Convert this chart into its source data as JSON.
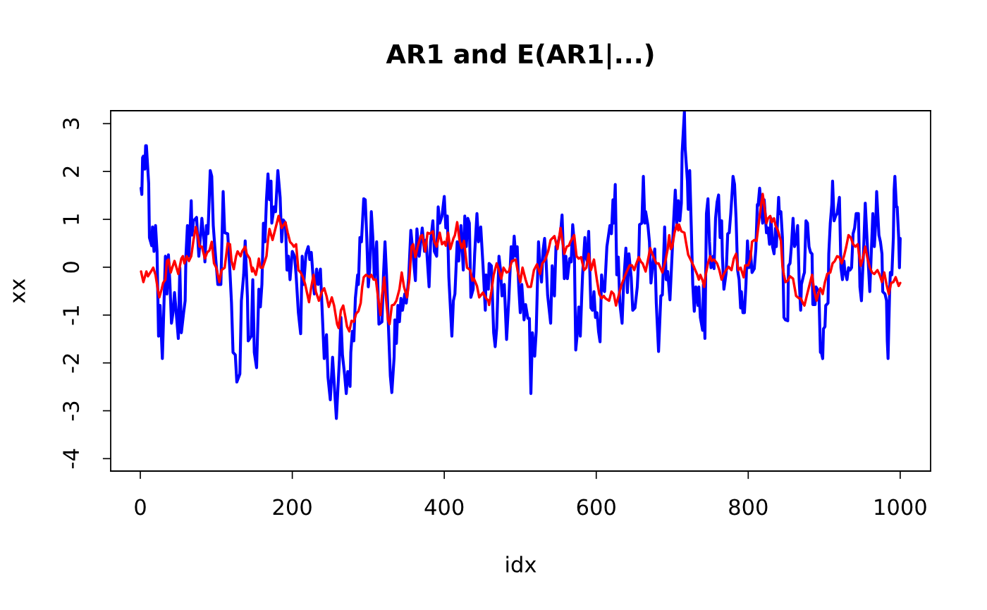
{
  "chart_data": {
    "type": "line",
    "title": "AR1 and E(AR1|...)",
    "xlabel": "idx",
    "ylabel": "xx",
    "xlim": [
      -39,
      1040
    ],
    "ylim": [
      -4.26,
      3.27
    ],
    "xticks": [
      0,
      200,
      400,
      600,
      800,
      1000
    ],
    "yticks": [
      -4,
      -3,
      -2,
      -1,
      0,
      1,
      2,
      3
    ],
    "series": [
      {
        "color": "#0000ff",
        "x": [
          1,
          2,
          3,
          4,
          6,
          7,
          8,
          11,
          12,
          15,
          16,
          18,
          20,
          22,
          24,
          26,
          29,
          33,
          35,
          37,
          39,
          41,
          43,
          45,
          47,
          50,
          52,
          54,
          57,
          59,
          60,
          62,
          64,
          67,
          68,
          70,
          74,
          77,
          81,
          84,
          85,
          87,
          89,
          92,
          94,
          96,
          98,
          100,
          102,
          106,
          109,
          111,
          115,
          118,
          120,
          122,
          125,
          127,
          131,
          133,
          136,
          138,
          141,
          142,
          146,
          148,
          150,
          153,
          156,
          158,
          160,
          162,
          164,
          166,
          168,
          170,
          172,
          173,
          176,
          178,
          181,
          184,
          186,
          188,
          191,
          193,
          195,
          197,
          200,
          203,
          205,
          208,
          211,
          213,
          215,
          218,
          221,
          223,
          225,
          229,
          232,
          234,
          237,
          239,
          242,
          245,
          247,
          250,
          253,
          258,
          262,
          264,
          266,
          269,
          271,
          273,
          276,
          277,
          279,
          281,
          283,
          286,
          287,
          289,
          291,
          294,
          296,
          298,
          300,
          302,
          304,
          306,
          308,
          311,
          314,
          318,
          320,
          322,
          324,
          327,
          329,
          331,
          334,
          335,
          337,
          339,
          341,
          343,
          345,
          348,
          350,
          353,
          356,
          358,
          362,
          364,
          367,
          371,
          374,
          376,
          380,
          382,
          385,
          387,
          390,
          392,
          394,
          397,
          400,
          402,
          404,
          406,
          410,
          412,
          414,
          417,
          419,
          421,
          422,
          425,
          427,
          429,
          431,
          433,
          435,
          438,
          440,
          443,
          445,
          448,
          451,
          454,
          455,
          458,
          459,
          462,
          465,
          467,
          469,
          472,
          474,
          476,
          479,
          482,
          485,
          488,
          490,
          492,
          494,
          496,
          498,
          500,
          502,
          505,
          507,
          510,
          512,
          514,
          516,
          519,
          521,
          524,
          526,
          528,
          530,
          532,
          534,
          536,
          540,
          542,
          545,
          547,
          550,
          553,
          555,
          558,
          560,
          562,
          565,
          567,
          569,
          571,
          573,
          575,
          577,
          579,
          581,
          582,
          585,
          586,
          588,
          590,
          593,
          595,
          597,
          599,
          601,
          603,
          605,
          607,
          609,
          611,
          614,
          616,
          618,
          620,
          622,
          623,
          625,
          627,
          629,
          631,
          634,
          636,
          639,
          641,
          643,
          646,
          648,
          651,
          654,
          656,
          657,
          660,
          662,
          664,
          665,
          668,
          670,
          672,
          674,
          677,
          679,
          682,
          685,
          687,
          690,
          692,
          694,
          697,
          700,
          702,
          704,
          706,
          708,
          710,
          712,
          713,
          716,
          717,
          720,
          721,
          723,
          725,
          727,
          729,
          731,
          734,
          735,
          737,
          740,
          741,
          743,
          745,
          747,
          749,
          751,
          754,
          755,
          757,
          759,
          761,
          763,
          765,
          766,
          768,
          771,
          773,
          775,
          777,
          779,
          780,
          782,
          784,
          786,
          788,
          790,
          791,
          793,
          795,
          797,
          799,
          801,
          803,
          805,
          808,
          810,
          812,
          813,
          815,
          819,
          821,
          824,
          826,
          828,
          830,
          832,
          834,
          836,
          837,
          840,
          841,
          843,
          845,
          847,
          849,
          852,
          853,
          855,
          857,
          859,
          861,
          863,
          865,
          867,
          869,
          870,
          873,
          874,
          876,
          878,
          880,
          882,
          884,
          885,
          888,
          889,
          891,
          893,
          895,
          896,
          898,
          899,
          901,
          902,
          905,
          906,
          908,
          910,
          911,
          913,
          915,
          917,
          920,
          922,
          924,
          926,
          927,
          930,
          932,
          934,
          936,
          938,
          940,
          942,
          945,
          947,
          949,
          952,
          954,
          957,
          958,
          960,
          962,
          964,
          966,
          968,
          969,
          972,
          974,
          976,
          977,
          980,
          982,
          983,
          984,
          986,
          987,
          989,
          991,
          992,
          993,
          995,
          996,
          998,
          999,
          1000
        ],
        "values": [
          1.65,
          1.52,
          2.29,
          2.32,
          2.05,
          2.54,
          2.54,
          1.75,
          0.62,
          0.45,
          0.84,
          0.33,
          0.87,
          0.33,
          -1.44,
          -0.8,
          -1.91,
          0.23,
          -0.56,
          0.26,
          -0.36,
          -1.17,
          -0.95,
          -0.53,
          -0.9,
          -1.49,
          -0.01,
          -1.37,
          -0.95,
          -0.7,
          0.23,
          0.87,
          0.23,
          1.39,
          0.67,
          0.97,
          1.04,
          0.23,
          1.02,
          0.53,
          0.11,
          0.87,
          0.7,
          2.02,
          1.9,
          0.87,
          0.43,
          0.03,
          -0.36,
          -0.36,
          1.58,
          0.72,
          0.7,
          -0.11,
          -0.75,
          -1.78,
          -1.83,
          -2.4,
          -2.23,
          -0.7,
          -0.16,
          0.55,
          -0.65,
          -1.54,
          -1.44,
          -0.26,
          -1.78,
          -2.1,
          -0.46,
          -0.83,
          -0.36,
          0.92,
          0.53,
          1.41,
          1.95,
          1.41,
          1.8,
          0.92,
          1.26,
          1.16,
          2.02,
          1.46,
          0.53,
          0.99,
          0.92,
          -0.06,
          0.23,
          -0.26,
          0.33,
          0.23,
          -0.16,
          -0.95,
          -1.39,
          0.23,
          -0.36,
          0.28,
          0.43,
          0.16,
          0.31,
          -0.56,
          -0.04,
          -0.36,
          -0.04,
          -0.8,
          -1.91,
          -1.41,
          -2.3,
          -2.77,
          -1.88,
          -3.16,
          -1.93,
          -1.05,
          -1.83,
          -2.27,
          -2.64,
          -2.18,
          -2.49,
          -1.78,
          -1.34,
          -1.54,
          -0.65,
          -0.16,
          -0.36,
          0.62,
          0.53,
          1.43,
          1.41,
          0.62,
          -0.41,
          -0.01,
          1.16,
          0.62,
          -0.24,
          0.53,
          -1.19,
          -1.14,
          -0.16,
          0.53,
          -0.16,
          -1.44,
          -2.27,
          -2.62,
          -1.88,
          -1.1,
          -1.59,
          -0.8,
          -1.14,
          -0.65,
          -0.9,
          -0.56,
          -0.75,
          -0.26,
          0.77,
          0.43,
          -0.28,
          0.8,
          0.23,
          0.82,
          0.33,
          0.57,
          -0.41,
          0.53,
          0.97,
          0.33,
          0.23,
          1.26,
          0.92,
          1.07,
          1.48,
          0.82,
          1.07,
          -0.21,
          -1.44,
          -0.7,
          -0.56,
          0.53,
          0.13,
          0.62,
          0.87,
          -0.06,
          1.07,
          0.43,
          1.02,
          0.92,
          -0.63,
          -0.46,
          0.28,
          1.12,
          0.53,
          0.84,
          0.03,
          -0.9,
          -0.16,
          -0.46,
          0.08,
          0.03,
          -1.37,
          -1.66,
          -1.27,
          0.23,
          -0.06,
          -0.6,
          -0.36,
          -1.51,
          -0.65,
          0.43,
          0.13,
          0.65,
          0.23,
          0.43,
          -0.41,
          -0.95,
          -0.36,
          -1.1,
          -0.78,
          -1.07,
          -1.07,
          -2.64,
          -1.37,
          -1.86,
          -1.34,
          0.53,
          0.03,
          -0.31,
          0.35,
          0.6,
          0.13,
          -0.58,
          -1.17,
          0.03,
          -0.6,
          0.43,
          0.53,
          0.72,
          1.09,
          -0.24,
          0.23,
          -0.24,
          0.18,
          0.11,
          0.89,
          0.53,
          -1.73,
          -1.39,
          -0.83,
          -1.44,
          -0.56,
          -0.16,
          0.62,
          0.23,
          0.13,
          0.75,
          -0.85,
          -0.9,
          -0.51,
          -1.05,
          -0.95,
          -1.34,
          -1.56,
          -0.16,
          -0.46,
          -0.51,
          0.43,
          0.65,
          0.87,
          0.7,
          1.41,
          0.92,
          1.73,
          -0.16,
          0.21,
          -0.75,
          -1.17,
          -0.36,
          0.4,
          -0.53,
          0.28,
          -0.21,
          -0.9,
          -0.85,
          -0.41,
          0.23,
          0.89,
          0.92,
          1.9,
          0.92,
          1.16,
          0.87,
          0.53,
          -0.33,
          -0.01,
          0.38,
          -0.75,
          -1.76,
          -0.6,
          -0.58,
          0.84,
          -0.26,
          -0.09,
          -0.68,
          0.33,
          1.02,
          1.61,
          0.92,
          1.39,
          0.97,
          1.34,
          2.39,
          3.25,
          2.49,
          1.8,
          1.21,
          2.02,
          0.87,
          -0.36,
          -0.92,
          -0.41,
          -0.8,
          -0.41,
          -1.05,
          -1.32,
          -0.36,
          -1.49,
          1.12,
          1.43,
          0.53,
          -0.01,
          0.23,
          -0.03,
          1.02,
          1.36,
          1.51,
          0.62,
          0.97,
          0.23,
          -0.46,
          -0.11,
          0.7,
          0.72,
          1.12,
          1.61,
          1.9,
          1.73,
          1.02,
          -0.06,
          -0.26,
          -0.85,
          -0.51,
          -0.95,
          -0.95,
          -0.36,
          0.55,
          -0.01,
          0.33,
          -0.11,
          -0.03,
          0.38,
          1.31,
          1.29,
          1.65,
          0.92,
          1.41,
          0.72,
          0.82,
          0.48,
          1.02,
          0.43,
          0.28,
          0.82,
          0.43,
          1.46,
          1.12,
          1.16,
          0.62,
          -1.05,
          -1.1,
          -1.12,
          0.03,
          0.08,
          0.48,
          1.02,
          0.43,
          0.53,
          0.87,
          -0.26,
          -0.9,
          -0.36,
          -0.16,
          -0.11,
          0.97,
          0.92,
          0.43,
          0.31,
          0.28,
          -0.78,
          -0.78,
          -0.41,
          -0.46,
          -0.51,
          -1.78,
          -1.76,
          -1.91,
          -1.29,
          -1.24,
          -0.8,
          -0.75,
          0.28,
          0.92,
          1.31,
          1.8,
          0.97,
          1.07,
          1.12,
          1.46,
          -0.01,
          -0.26,
          0.13,
          -0.06,
          -0.26,
          -0.01,
          -0.06,
          -0.01,
          0.7,
          0.82,
          1.12,
          1.12,
          -0.41,
          -0.7,
          0.43,
          1.34,
          0.38,
          0.08,
          -0.51,
          0.33,
          1.12,
          0.43,
          1.02,
          1.58,
          0.67,
          0.53,
          0.28,
          -0.51,
          -0.56,
          -0.7,
          -1.54,
          -1.91,
          -0.56,
          -0.11,
          -0.16,
          0.62,
          1.61,
          1.9,
          1.26,
          1.26,
          0.62,
          -0.01,
          0.6
        ]
      },
      {
        "color": "#ff0000",
        "x": [
          1,
          4,
          8,
          10,
          14,
          17,
          20,
          23,
          25,
          28,
          30,
          33,
          35,
          37,
          40,
          42,
          45,
          50,
          54,
          56,
          58,
          61,
          64,
          67,
          70,
          73,
          76,
          78,
          81,
          85,
          88,
          91,
          94,
          97,
          100,
          104,
          107,
          111,
          115,
          118,
          120,
          123,
          126,
          128,
          132,
          134,
          138,
          140,
          144,
          147,
          148,
          152,
          154,
          156,
          158,
          161,
          164,
          166,
          168,
          170,
          174,
          178,
          182,
          186,
          191,
          194,
          197,
          200,
          202,
          205,
          208,
          211,
          214,
          217,
          222,
          225,
          228,
          231,
          235,
          239,
          242,
          245,
          248,
          252,
          255,
          259,
          261,
          264,
          267,
          270,
          272,
          275,
          278,
          281,
          284,
          287,
          290,
          292,
          294,
          297,
          302,
          304,
          307,
          310,
          313,
          316,
          318,
          321,
          323,
          326,
          328,
          331,
          334,
          337,
          341,
          344,
          347,
          351,
          354,
          357,
          359,
          362,
          365,
          369,
          371,
          375,
          378,
          381,
          385,
          387,
          390,
          394,
          397,
          400,
          402,
          405,
          408,
          412,
          414,
          417,
          420,
          423,
          426,
          430,
          434,
          437,
          439,
          443,
          446,
          451,
          455,
          458,
          459,
          462,
          465,
          469,
          472,
          475,
          478,
          482,
          485,
          489,
          494,
          497,
          500,
          503,
          507,
          510,
          514,
          518,
          522,
          526,
          529,
          533,
          537,
          540,
          545,
          549,
          553,
          558,
          561,
          564,
          566,
          571,
          574,
          577,
          580,
          584,
          587,
          590,
          593,
          597,
          601,
          604,
          607,
          610,
          612,
          617,
          620,
          623,
          626,
          630,
          633,
          637,
          641,
          644,
          647,
          650,
          652,
          656,
          659,
          661,
          665,
          669,
          671,
          675,
          679,
          682,
          687,
          691,
          694,
          696,
          698,
          700,
          703,
          706,
          708,
          709,
          712,
          716,
          718,
          721,
          725,
          729,
          733,
          735,
          737,
          740,
          742,
          744,
          747,
          750,
          752,
          755,
          759,
          762,
          765,
          768,
          771,
          774,
          778,
          781,
          784,
          787,
          790,
          794,
          796,
          800,
          803,
          805,
          808,
          811,
          815,
          819,
          821,
          824,
          826,
          829,
          831,
          834,
          836,
          839,
          843,
          845,
          847,
          849,
          852,
          855,
          859,
          863,
          867,
          869,
          872,
          874,
          877,
          880,
          884,
          887,
          890,
          893,
          895,
          898,
          901,
          904,
          908,
          911,
          914,
          917,
          920,
          923,
          926,
          929,
          932,
          935,
          938,
          941,
          944,
          948,
          950,
          954,
          957,
          960,
          963,
          966,
          970,
          973,
          976,
          979,
          982,
          985,
          988,
          991,
          994,
          998,
          1000
        ],
        "values": [
          -0.09,
          -0.31,
          -0.09,
          -0.19,
          -0.09,
          -0.01,
          -0.16,
          -0.46,
          -0.63,
          -0.46,
          -0.33,
          -0.26,
          0.13,
          0.16,
          -0.11,
          -0.01,
          0.13,
          -0.14,
          0.18,
          0.23,
          0.08,
          0.23,
          0.13,
          0.23,
          0.57,
          0.84,
          0.62,
          0.43,
          0.43,
          0.18,
          0.31,
          0.35,
          0.53,
          0.08,
          -0.01,
          -0.31,
          -0.06,
          -0.01,
          0.5,
          0.48,
          0.13,
          -0.04,
          0.23,
          0.33,
          0.23,
          0.33,
          0.43,
          0.28,
          0.18,
          -0.09,
          -0.01,
          -0.16,
          -0.01,
          0.18,
          -0.01,
          -0.01,
          0.13,
          0.23,
          0.57,
          0.8,
          0.57,
          0.82,
          1.07,
          0.82,
          0.94,
          0.72,
          0.53,
          0.48,
          0.43,
          0.48,
          -0.06,
          -0.11,
          -0.21,
          -0.36,
          -0.73,
          -0.41,
          -0.16,
          -0.51,
          -0.7,
          -0.51,
          -0.44,
          -0.6,
          -0.83,
          -0.63,
          -0.8,
          -1.19,
          -1.27,
          -0.9,
          -0.8,
          -1.05,
          -1.24,
          -1.34,
          -1.12,
          -1.14,
          -0.97,
          -0.92,
          -0.75,
          -0.41,
          -0.21,
          -0.16,
          -0.21,
          -0.16,
          -0.26,
          -0.26,
          -0.65,
          -1.0,
          -0.6,
          -0.21,
          -0.6,
          -1.1,
          -1.19,
          -0.8,
          -0.78,
          -0.7,
          -0.46,
          -0.11,
          -0.41,
          -0.63,
          -0.26,
          0.43,
          0.48,
          0.21,
          0.43,
          0.65,
          0.67,
          0.33,
          0.72,
          0.7,
          0.75,
          0.53,
          0.43,
          0.72,
          0.48,
          0.53,
          0.45,
          0.72,
          0.38,
          0.6,
          0.67,
          0.94,
          0.57,
          0.4,
          0.55,
          -0.01,
          -0.06,
          -0.28,
          -0.24,
          -0.39,
          -0.63,
          -0.53,
          -0.65,
          -0.7,
          -0.79,
          -0.51,
          -0.16,
          0.08,
          -0.06,
          -0.24,
          -0.01,
          -0.11,
          -0.09,
          0.13,
          0.16,
          -0.11,
          -0.31,
          -0.01,
          -0.26,
          -0.41,
          -0.41,
          -0.06,
          0.06,
          -0.14,
          0.08,
          0.16,
          0.35,
          0.57,
          0.65,
          0.38,
          0.82,
          0.28,
          0.43,
          0.45,
          0.53,
          0.67,
          0.23,
          0.18,
          0.21,
          -0.06,
          -0.01,
          0.28,
          -0.06,
          0.16,
          -0.28,
          -0.56,
          -0.65,
          -0.6,
          -0.65,
          -0.7,
          -0.51,
          -0.56,
          -0.8,
          -0.56,
          -0.38,
          -0.21,
          -0.06,
          0.04,
          0.04,
          -0.06,
          0.04,
          0.21,
          0.11,
          0.08,
          -0.09,
          0.23,
          0.4,
          0.23,
          0.08,
          0.08,
          -0.11,
          0.13,
          0.38,
          0.67,
          0.38,
          0.43,
          0.72,
          0.89,
          0.77,
          0.89,
          0.75,
          0.72,
          0.53,
          0.26,
          0.13,
          -0.01,
          -0.16,
          -0.26,
          -0.16,
          -0.28,
          -0.41,
          -0.16,
          0.08,
          0.23,
          0.13,
          0.16,
          0.08,
          -0.06,
          -0.26,
          -0.14,
          -0.06,
          0.01,
          -0.06,
          0.18,
          0.28,
          -0.06,
          -0.01,
          -0.21,
          0.04,
          0.04,
          0.18,
          0.53,
          0.57,
          0.55,
          1.07,
          1.53,
          1.31,
          0.92,
          1.02,
          1.07,
          0.94,
          1.02,
          0.87,
          0.77,
          0.55,
          0.03,
          -0.16,
          -0.31,
          -0.28,
          -0.19,
          -0.24,
          -0.6,
          -0.65,
          -0.65,
          -0.75,
          -0.8,
          -0.6,
          -0.41,
          -0.16,
          -0.51,
          -0.7,
          -0.51,
          -0.44,
          -0.56,
          -0.31,
          -0.14,
          -0.11,
          0.08,
          0.13,
          0.23,
          0.21,
          0.08,
          0.23,
          0.43,
          0.67,
          0.62,
          0.48,
          0.43,
          0.48,
          0.03,
          0.13,
          0.43,
          0.18,
          -0.01,
          -0.11,
          -0.14,
          -0.06,
          -0.16,
          -0.31,
          -0.11,
          -0.36,
          -0.56,
          -0.33,
          -0.31,
          -0.21,
          -0.39,
          -0.33
        ]
      }
    ]
  }
}
